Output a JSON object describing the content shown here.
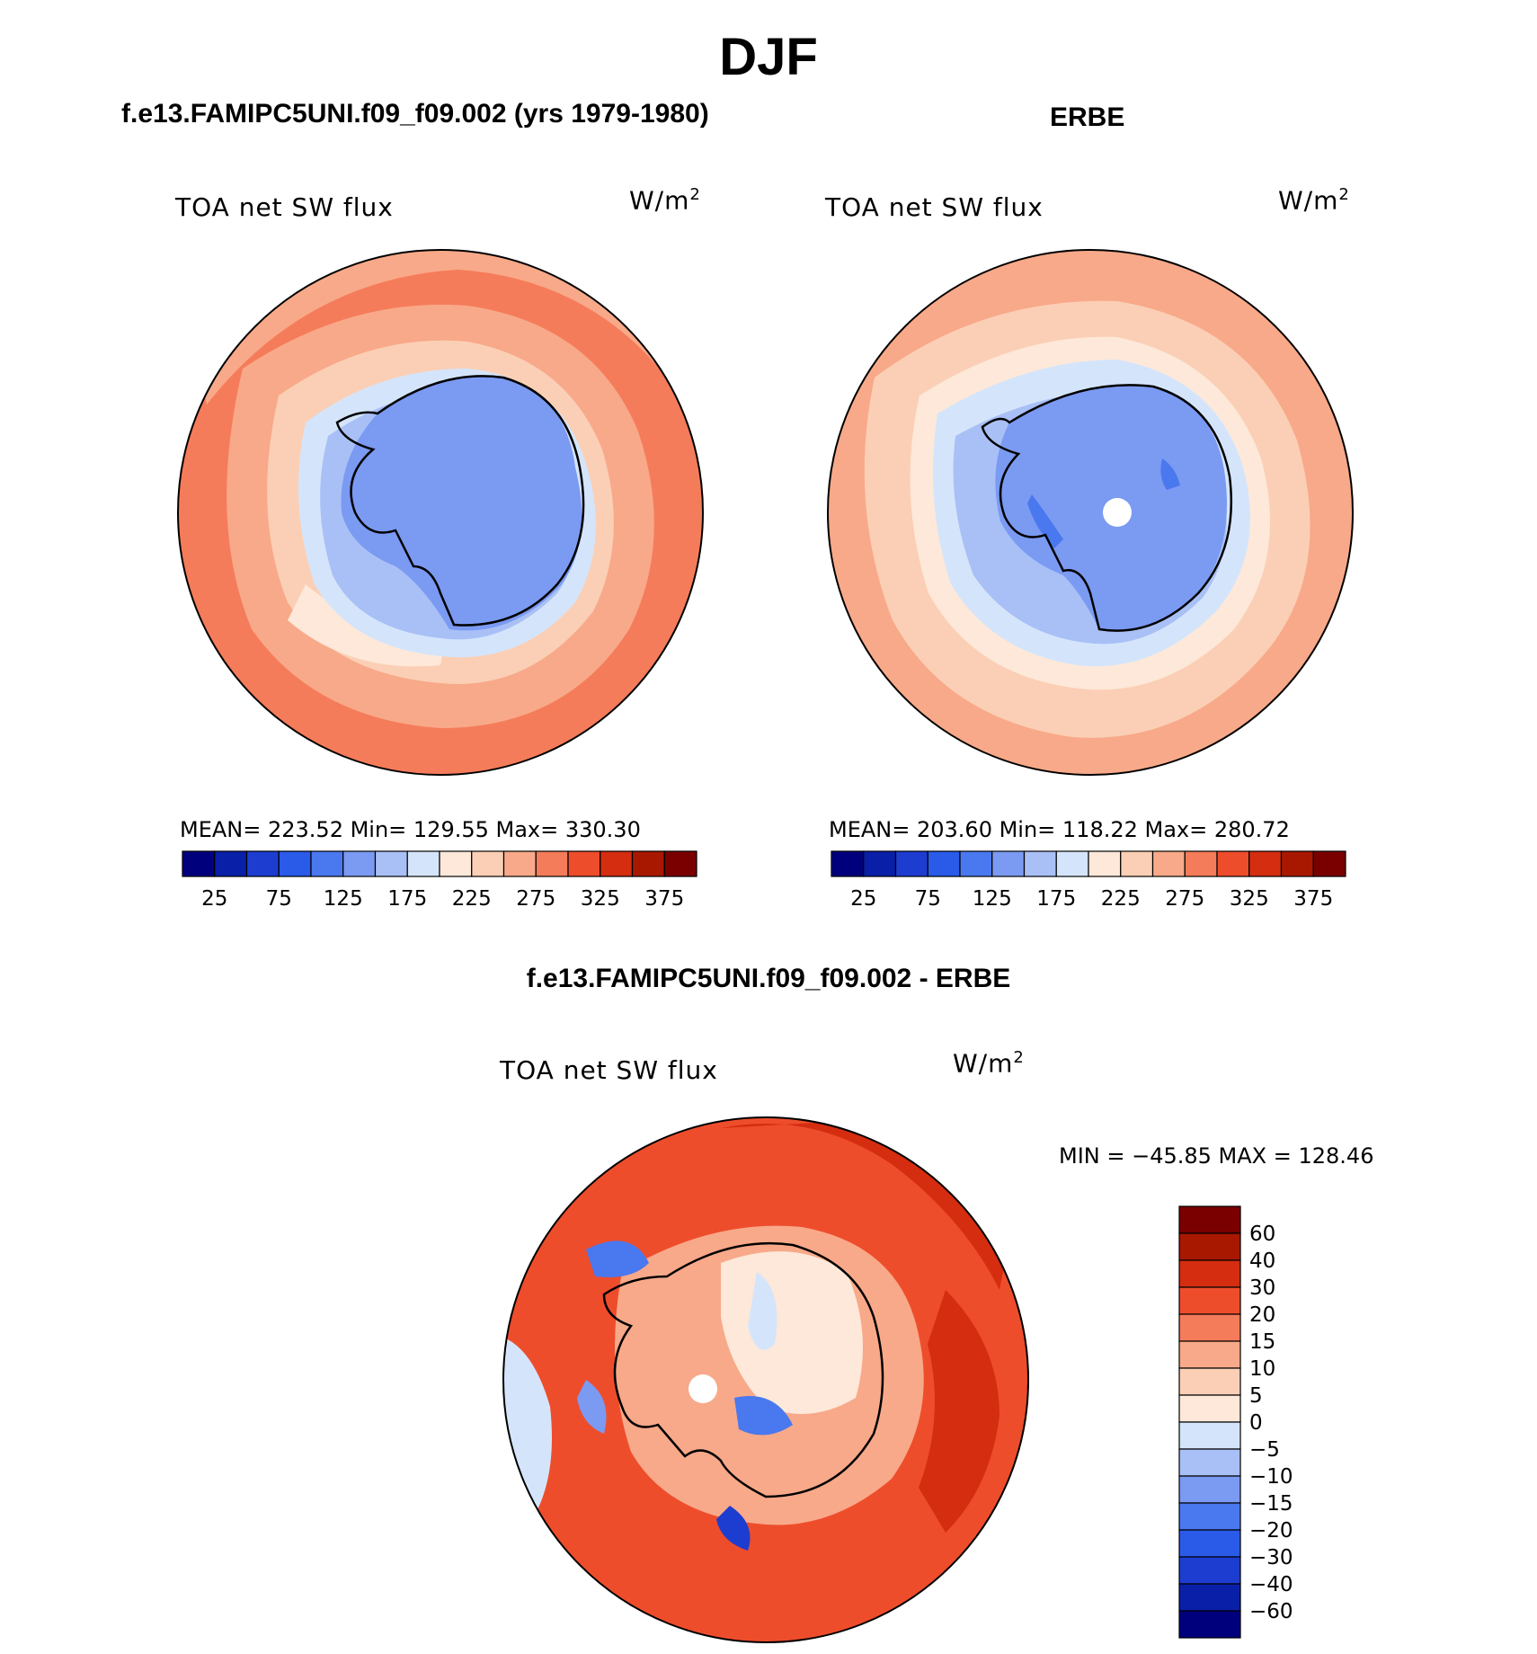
{
  "figure": {
    "title": "DJF",
    "left_panel_title": "f.e13.FAMIPC5UNI.f09_f09.002 (yrs 1979-1980)",
    "right_panel_title": "ERBE",
    "diff_panel_title": "f.e13.FAMIPC5UNI.f09_f09.002 - ERBE"
  },
  "panels": {
    "model": {
      "variable": "TOA net SW flux",
      "units": "W/m",
      "units_sup": "2",
      "stats": "MEAN= 223.52   Min= 129.55   Max= 330.30"
    },
    "obs": {
      "variable": "TOA net SW flux",
      "units": "W/m",
      "units_sup": "2",
      "stats": "MEAN= 203.60   Min= 118.22   Max= 280.72"
    },
    "diff": {
      "variable": "TOA net SW flux",
      "units": "W/m",
      "units_sup": "2",
      "minmax": "MIN = −45.85 MAX = 128.46"
    }
  },
  "chart_data": [
    {
      "type": "heatmap",
      "name": "model",
      "title": "f.e13.FAMIPC5UNI.f09_f09.002 (yrs 1979-1980)",
      "projection": "south-polar-stereographic",
      "mean": 223.52,
      "min": 129.55,
      "max": 330.3,
      "colorbar_levels": [
        25,
        50,
        75,
        100,
        125,
        150,
        175,
        200,
        225,
        250,
        275,
        300,
        325,
        350,
        375
      ],
      "colorbar_tick_labels": [
        "25",
        "75",
        "125",
        "175",
        "225",
        "275",
        "325",
        "375"
      ],
      "colors": [
        "#00007d",
        "#0a1fa8",
        "#1d3dd0",
        "#2a5ae8",
        "#4a78ee",
        "#7b9af2",
        "#a9c0f6",
        "#d4e5fb",
        "#fde8d9",
        "#fbcfb5",
        "#f8a989",
        "#f57c5a",
        "#ee4d2c",
        "#d42d10",
        "#a81800",
        "#7a0000"
      ]
    },
    {
      "type": "heatmap",
      "name": "obs",
      "title": "ERBE",
      "projection": "south-polar-stereographic",
      "mean": 203.6,
      "min": 118.22,
      "max": 280.72,
      "colorbar_levels": [
        25,
        50,
        75,
        100,
        125,
        150,
        175,
        200,
        225,
        250,
        275,
        300,
        325,
        350,
        375
      ],
      "colorbar_tick_labels": [
        "25",
        "75",
        "125",
        "175",
        "225",
        "275",
        "325",
        "375"
      ],
      "colors": [
        "#00007d",
        "#0a1fa8",
        "#1d3dd0",
        "#2a5ae8",
        "#4a78ee",
        "#7b9af2",
        "#a9c0f6",
        "#d4e5fb",
        "#fde8d9",
        "#fbcfb5",
        "#f8a989",
        "#f57c5a",
        "#ee4d2c",
        "#d42d10",
        "#a81800",
        "#7a0000"
      ]
    },
    {
      "type": "heatmap",
      "name": "difference",
      "title": "f.e13.FAMIPC5UNI.f09_f09.002 - ERBE",
      "projection": "south-polar-stereographic",
      "min": -45.85,
      "max": 128.46,
      "colorbar_levels": [
        60,
        40,
        30,
        20,
        15,
        10,
        5,
        0,
        -5,
        -10,
        -15,
        -20,
        -30,
        -40,
        -60
      ],
      "colorbar_tick_labels": [
        "60",
        "40",
        "30",
        "20",
        "15",
        "10",
        "5",
        "0",
        "−5",
        "−10",
        "−15",
        "−20",
        "−30",
        "−40",
        "−60"
      ],
      "colors_top_to_bottom": [
        "#7a0000",
        "#a81800",
        "#d42d10",
        "#ee4d2c",
        "#f57c5a",
        "#f8a989",
        "#fbcfb5",
        "#fde8d9",
        "#d4e5fb",
        "#a9c0f6",
        "#7b9af2",
        "#4a78ee",
        "#2a5ae8",
        "#1d3dd0",
        "#0a1fa8",
        "#00007d"
      ]
    }
  ]
}
